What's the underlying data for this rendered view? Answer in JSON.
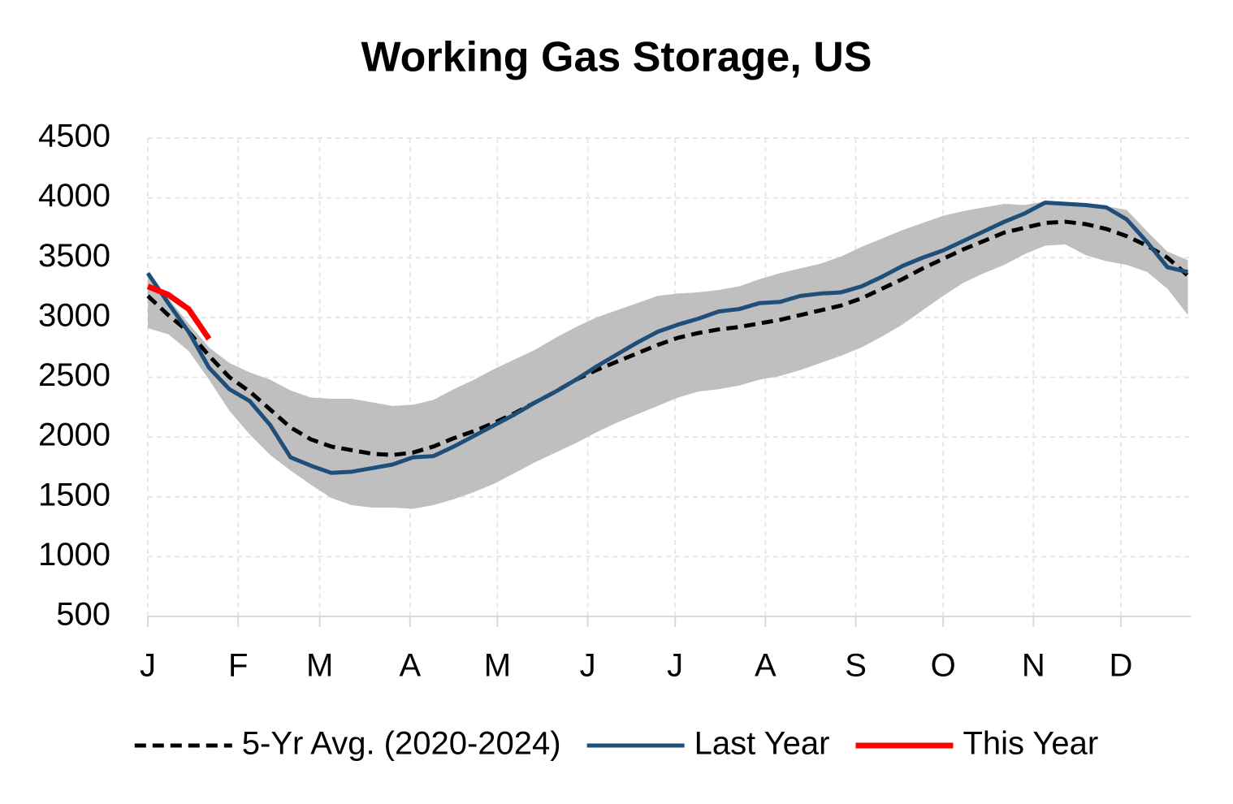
{
  "chart_data": {
    "type": "line",
    "title": "Working Gas Storage, US",
    "x": [
      0,
      7,
      14,
      21,
      28,
      35,
      42,
      49,
      56,
      63,
      70,
      77,
      84,
      91,
      98,
      105,
      112,
      119,
      126,
      133,
      140,
      147,
      154,
      161,
      168,
      175,
      182,
      189,
      196,
      203,
      210,
      217,
      224,
      231,
      238,
      245,
      252,
      259,
      266,
      273,
      280,
      287,
      294,
      301,
      308,
      315,
      322,
      329,
      336,
      343,
      350,
      357
    ],
    "xlim": [
      0,
      358
    ],
    "xticks": [
      {
        "value": 0,
        "label": "J"
      },
      {
        "value": 31,
        "label": "F"
      },
      {
        "value": 59,
        "label": "M"
      },
      {
        "value": 90,
        "label": "A"
      },
      {
        "value": 120,
        "label": "M"
      },
      {
        "value": 151,
        "label": "J"
      },
      {
        "value": 181,
        "label": "J"
      },
      {
        "value": 212,
        "label": "A"
      },
      {
        "value": 243,
        "label": "S"
      },
      {
        "value": 273,
        "label": "O"
      },
      {
        "value": 304,
        "label": "N"
      },
      {
        "value": 334,
        "label": "D"
      }
    ],
    "ylim": [
      500,
      4500
    ],
    "yticks": [
      500,
      1000,
      1500,
      2000,
      2500,
      3000,
      3500,
      4000,
      4500
    ],
    "grid": true,
    "band": {
      "color": "#bfbfbf",
      "upper": [
        3380,
        3160,
        2950,
        2750,
        2620,
        2540,
        2480,
        2390,
        2330,
        2320,
        2320,
        2290,
        2260,
        2270,
        2310,
        2400,
        2480,
        2570,
        2650,
        2730,
        2830,
        2920,
        3000,
        3060,
        3120,
        3180,
        3200,
        3210,
        3230,
        3260,
        3320,
        3370,
        3410,
        3450,
        3510,
        3590,
        3660,
        3730,
        3790,
        3850,
        3890,
        3920,
        3950,
        3940,
        3970,
        3960,
        3940,
        3930,
        3900,
        3720,
        3550,
        3480
      ],
      "lower": [
        2910,
        2860,
        2720,
        2480,
        2220,
        2020,
        1850,
        1720,
        1600,
        1490,
        1430,
        1410,
        1410,
        1400,
        1430,
        1480,
        1540,
        1610,
        1700,
        1790,
        1870,
        1950,
        2040,
        2120,
        2190,
        2260,
        2330,
        2380,
        2400,
        2430,
        2480,
        2510,
        2560,
        2620,
        2680,
        2750,
        2840,
        2940,
        3060,
        3180,
        3290,
        3370,
        3440,
        3530,
        3600,
        3610,
        3520,
        3470,
        3440,
        3380,
        3240,
        3020
      ]
    },
    "series": [
      {
        "name": "5-Yr Avg. (2020-2024)",
        "color": "#000000",
        "dashed": true,
        "values": [
          3180,
          3020,
          2880,
          2680,
          2500,
          2380,
          2230,
          2080,
          1980,
          1920,
          1890,
          1860,
          1850,
          1870,
          1920,
          1990,
          2050,
          2120,
          2200,
          2290,
          2380,
          2480,
          2560,
          2630,
          2700,
          2770,
          2830,
          2870,
          2900,
          2920,
          2950,
          2980,
          3020,
          3060,
          3100,
          3160,
          3240,
          3320,
          3410,
          3490,
          3570,
          3640,
          3710,
          3750,
          3790,
          3800,
          3780,
          3740,
          3680,
          3600,
          3500,
          3350
        ]
      },
      {
        "name": "Last Year",
        "color": "#1f4e79",
        "dashed": false,
        "values": [
          3370,
          3120,
          2880,
          2580,
          2400,
          2300,
          2100,
          1830,
          1760,
          1700,
          1710,
          1740,
          1770,
          1830,
          1840,
          1920,
          2010,
          2100,
          2190,
          2290,
          2380,
          2480,
          2590,
          2690,
          2790,
          2880,
          2940,
          2990,
          3050,
          3070,
          3120,
          3130,
          3180,
          3200,
          3210,
          3260,
          3340,
          3430,
          3500,
          3560,
          3640,
          3720,
          3800,
          3870,
          3960,
          3950,
          3940,
          3920,
          3820,
          3630,
          3420,
          3380
        ]
      },
      {
        "name": "This Year",
        "color": "#ff0000",
        "dashed": false,
        "values": [
          3260,
          3190,
          3070,
          2820,
          null,
          null,
          null,
          null,
          null,
          null,
          null,
          null,
          null,
          null,
          null,
          null,
          null,
          null,
          null,
          null,
          null,
          null,
          null,
          null,
          null,
          null,
          null,
          null,
          null,
          null,
          null,
          null,
          null,
          null,
          null,
          null,
          null,
          null,
          null,
          null,
          null,
          null,
          null,
          null,
          null,
          null,
          null,
          null,
          null,
          null,
          null,
          null
        ]
      }
    ]
  }
}
